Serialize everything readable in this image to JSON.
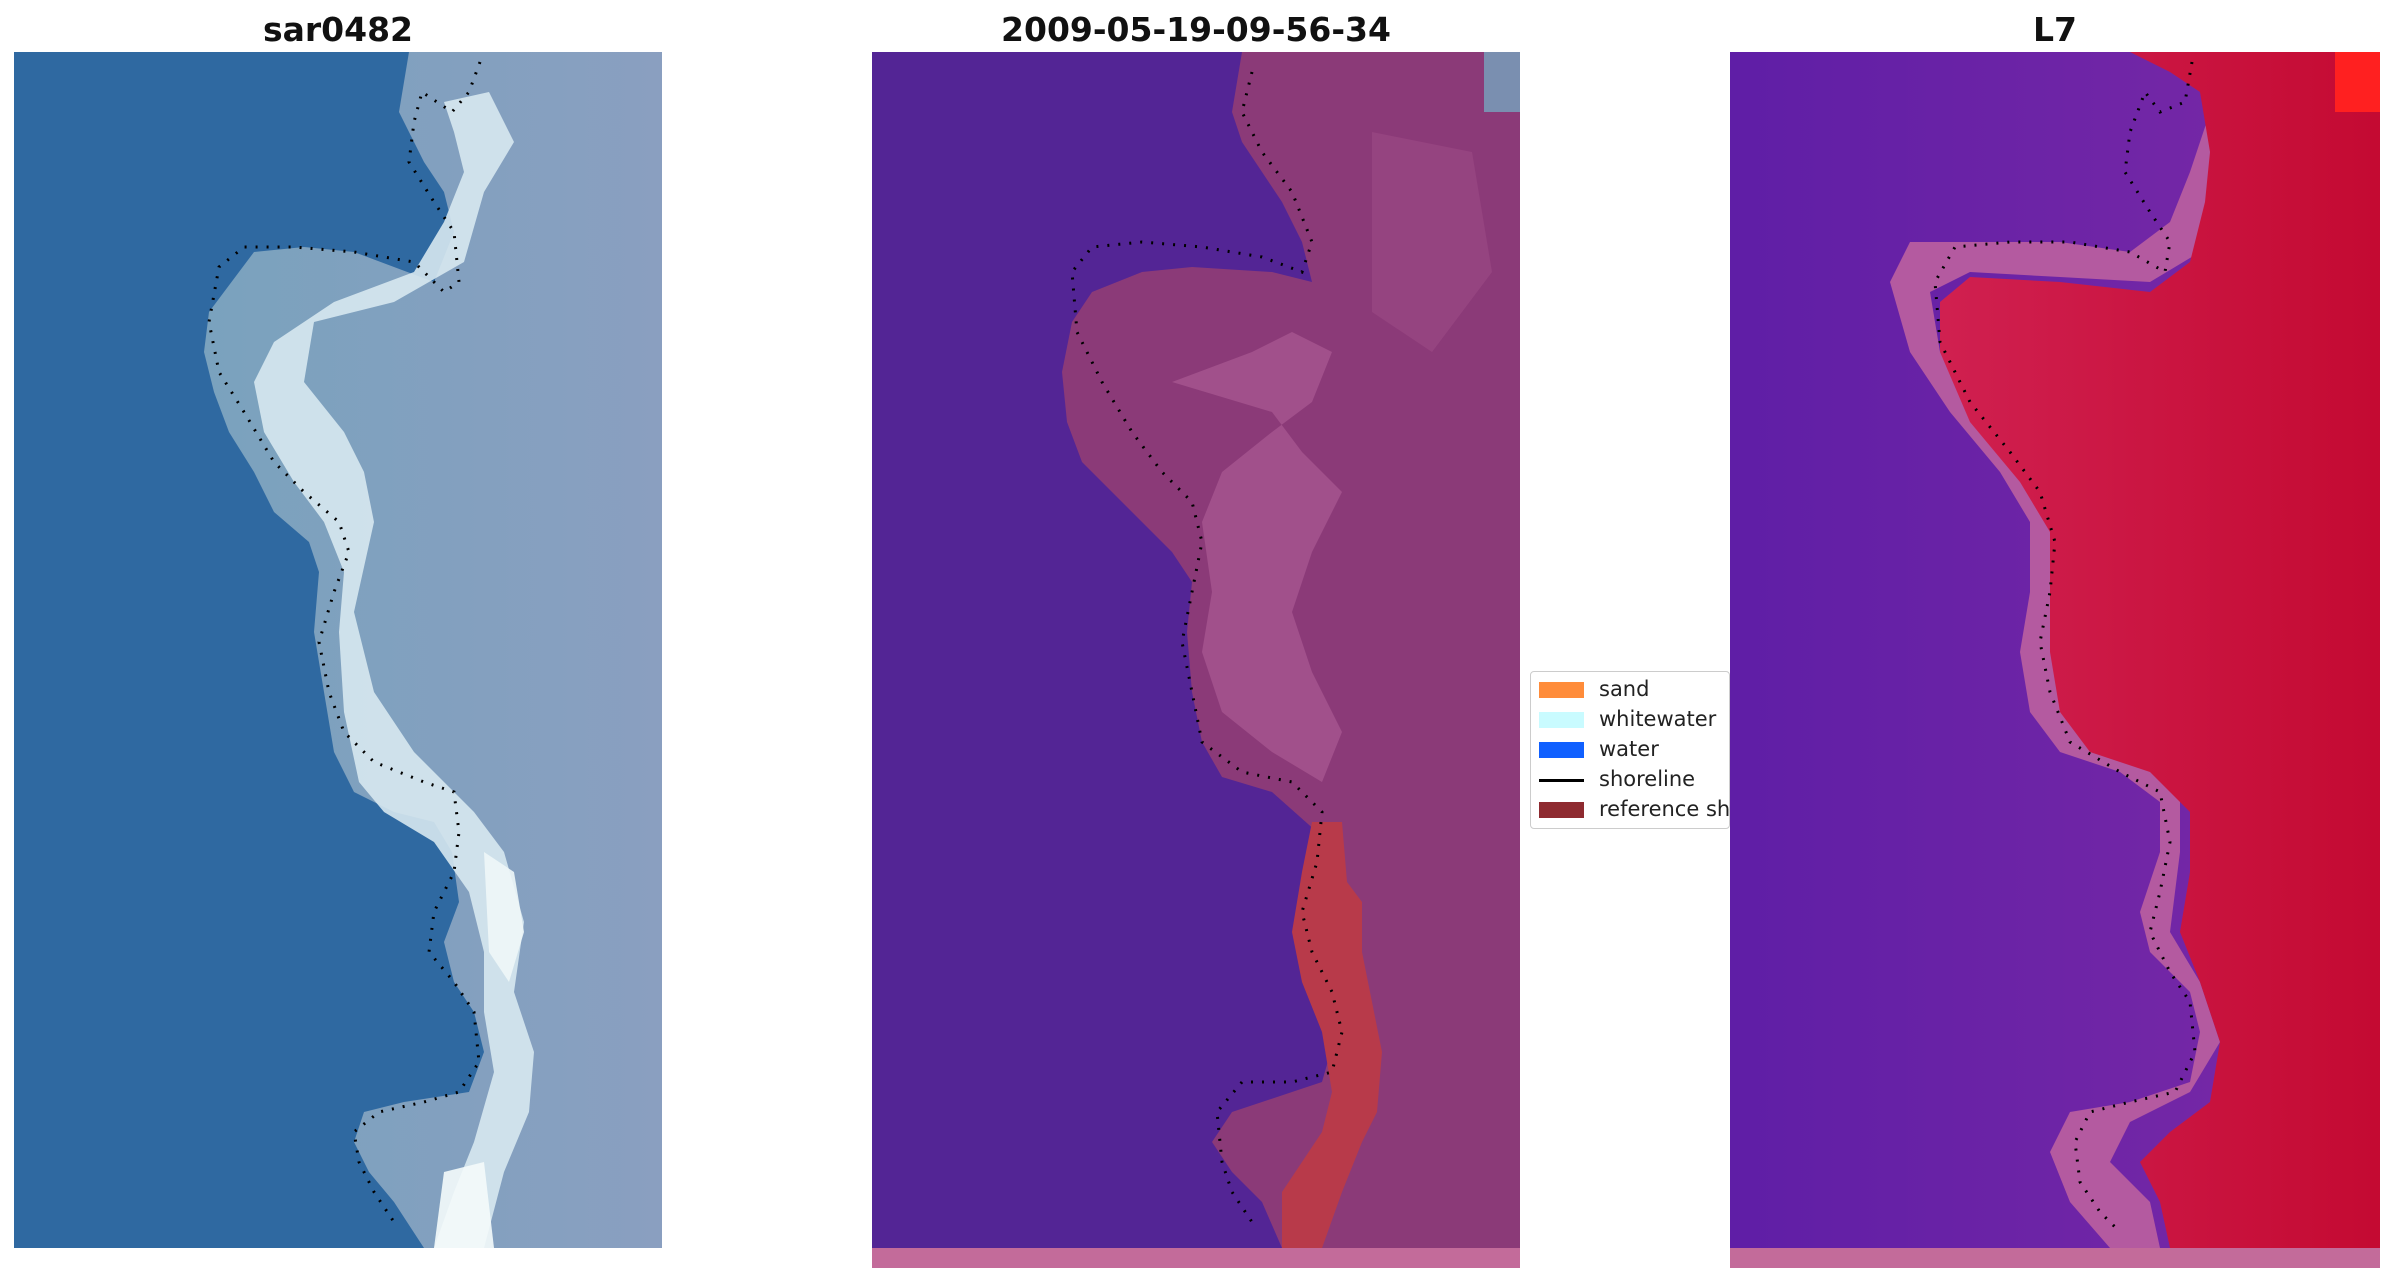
{
  "panels": [
    {
      "title": "sar0482"
    },
    {
      "title": "2009-05-19-09-56-34"
    },
    {
      "title": "L7"
    }
  ],
  "legend": {
    "items": [
      {
        "label": "sand",
        "color": "#ff8c3a"
      },
      {
        "label": "whitewater",
        "color": "#c9fbff"
      },
      {
        "label": "water",
        "color": "#1060ff"
      },
      {
        "label": "shoreline",
        "color": "#000000"
      },
      {
        "label": "reference shoreline",
        "color": "#8e2a30"
      }
    ]
  },
  "colors": {
    "rgb_water": "#2f6aa2",
    "rgb_land": "#8eaec4",
    "rgb_whitewater": "#dcebf0",
    "class_water": "#532595",
    "class_land": "#8b3a78",
    "class_reference": "#b83a4a",
    "mndwi_water": "#6a1fa8",
    "mndwi_land": "#c8103c",
    "mndwi_edge": "#b45aa0",
    "strip": "#c36b9a"
  }
}
